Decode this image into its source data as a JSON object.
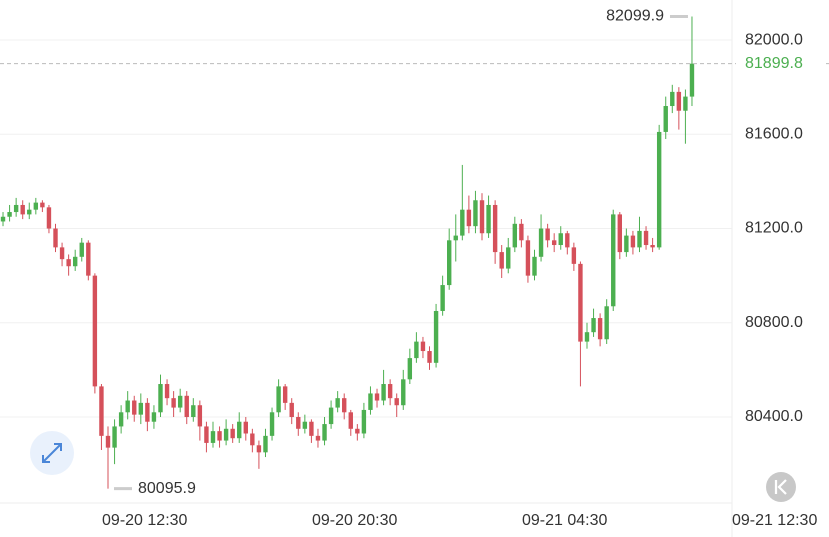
{
  "chart_data": {
    "type": "candlestick",
    "up_color": "#4caf50",
    "down_color": "#d5505a",
    "xlim": [
      -0.46,
      111.1
    ],
    "xticks": [
      {
        "value": 21.6,
        "label": "09-20 12:30"
      },
      {
        "value": 53.6,
        "label": "09-20 20:30"
      },
      {
        "value": 85.6,
        "label": "09-21 04:30"
      },
      {
        "value": 117.6,
        "label": "09-21 12:30"
      }
    ],
    "ylim": [
      80035,
      82170
    ],
    "yticks": [
      {
        "value": 80400,
        "label": "80400.0"
      },
      {
        "value": 80800,
        "label": "80800.0"
      },
      {
        "value": 81200,
        "label": "81200.0"
      },
      {
        "value": 81600,
        "label": "81600.0"
      },
      {
        "value": 82000,
        "label": "82000.0"
      }
    ],
    "grid": true,
    "open": [
      81230,
      81250,
      81270,
      81300,
      81260,
      81280,
      81310,
      81290,
      81200,
      81120,
      81070,
      81040,
      81080,
      81140,
      81000,
      80530,
      80320,
      80270,
      80360,
      80420,
      80470,
      80410,
      80460,
      80380,
      80420,
      80540,
      80480,
      80440,
      80490,
      80400,
      80450,
      80360,
      80290,
      80340,
      80300,
      80350,
      80310,
      80380,
      80330,
      80280,
      80250,
      80320,
      80420,
      80530,
      80460,
      80400,
      80350,
      80380,
      80320,
      80300,
      80370,
      80440,
      80480,
      80420,
      80350,
      80330,
      80430,
      80500,
      80470,
      80540,
      80480,
      80450,
      80560,
      80650,
      80720,
      80680,
      80630,
      80850,
      80960,
      81150,
      81170,
      81280,
      81210,
      81320,
      81180,
      81300,
      81100,
      81030,
      81120,
      81220,
      81150,
      81000,
      81080,
      81200,
      81150,
      81130,
      81180,
      81120,
      81050,
      80720,
      80760,
      80820,
      80730,
      80870,
      81260,
      81100,
      81170,
      81120,
      81190,
      81130,
      81120,
      81610,
      81720,
      81780,
      81700,
      81760
    ],
    "high": [
      81270,
      81300,
      81330,
      81320,
      81310,
      81330,
      81320,
      81300,
      81220,
      81140,
      81090,
      81110,
      81160,
      81150,
      81010,
      80540,
      80360,
      80390,
      80450,
      80510,
      80490,
      80500,
      80480,
      80450,
      80580,
      80560,
      80510,
      80520,
      80510,
      80480,
      80470,
      80380,
      80380,
      80360,
      80390,
      80370,
      80420,
      80400,
      80350,
      80300,
      80350,
      80440,
      80560,
      80540,
      80480,
      80420,
      80410,
      80390,
      80350,
      80400,
      80470,
      80510,
      80500,
      80430,
      80370,
      80460,
      80530,
      80520,
      80600,
      80560,
      80500,
      80600,
      80690,
      80760,
      80740,
      80700,
      80880,
      81000,
      81200,
      81260,
      81470,
      81340,
      81360,
      81350,
      81340,
      81320,
      81130,
      81160,
      81250,
      81240,
      81170,
      81110,
      81260,
      81220,
      81180,
      81210,
      81190,
      81140,
      81060,
      80800,
      80860,
      80840,
      80900,
      81280,
      81270,
      81200,
      81190,
      81250,
      81210,
      81160,
      81640,
      81760,
      81810,
      81800,
      81790,
      82099.9
    ],
    "low": [
      81210,
      81230,
      81250,
      81240,
      81240,
      81260,
      81270,
      81180,
      81100,
      81040,
      81000,
      81020,
      81060,
      80980,
      80500,
      80260,
      80095.9,
      80200,
      80330,
      80390,
      80380,
      80370,
      80340,
      80350,
      80400,
      80450,
      80400,
      80420,
      80370,
      80380,
      80300,
      80250,
      80270,
      80270,
      80280,
      80290,
      80290,
      80300,
      80250,
      80180,
      80230,
      80300,
      80400,
      80430,
      80370,
      80320,
      80330,
      80290,
      80270,
      80280,
      80350,
      80420,
      80390,
      80320,
      80300,
      80310,
      80410,
      80440,
      80450,
      80450,
      80400,
      80430,
      80540,
      80630,
      80650,
      80600,
      80610,
      80830,
      80940,
      81060,
      81150,
      81180,
      81180,
      81150,
      81160,
      81050,
      80990,
      81010,
      81100,
      81120,
      80970,
      80980,
      81060,
      81120,
      81100,
      81110,
      81090,
      81020,
      80530,
      80690,
      80740,
      80700,
      80710,
      80850,
      81070,
      81080,
      81090,
      81100,
      81110,
      81100,
      81110,
      81580,
      81690,
      81620,
      81560,
      81720
    ],
    "close": [
      81250,
      81270,
      81300,
      81260,
      81280,
      81310,
      81290,
      81200,
      81120,
      81070,
      81040,
      81080,
      81140,
      81000,
      80530,
      80320,
      80270,
      80360,
      80420,
      80470,
      80410,
      80460,
      80380,
      80420,
      80540,
      80480,
      80440,
      80490,
      80400,
      80450,
      80360,
      80290,
      80340,
      80300,
      80350,
      80310,
      80380,
      80330,
      80280,
      80250,
      80320,
      80420,
      80530,
      80460,
      80400,
      80350,
      80380,
      80320,
      80300,
      80370,
      80440,
      80480,
      80420,
      80350,
      80330,
      80430,
      80500,
      80470,
      80540,
      80480,
      80450,
      80560,
      80650,
      80720,
      80680,
      80630,
      80850,
      80960,
      81150,
      81170,
      81280,
      81210,
      81320,
      81180,
      81300,
      81100,
      81030,
      81120,
      81220,
      81150,
      81000,
      81080,
      81200,
      81150,
      81130,
      81180,
      81120,
      81050,
      80720,
      80760,
      80820,
      80730,
      80870,
      81260,
      81100,
      81170,
      81120,
      81190,
      81130,
      81120,
      81610,
      81720,
      81780,
      81700,
      81760,
      81899.8
    ]
  }
}
